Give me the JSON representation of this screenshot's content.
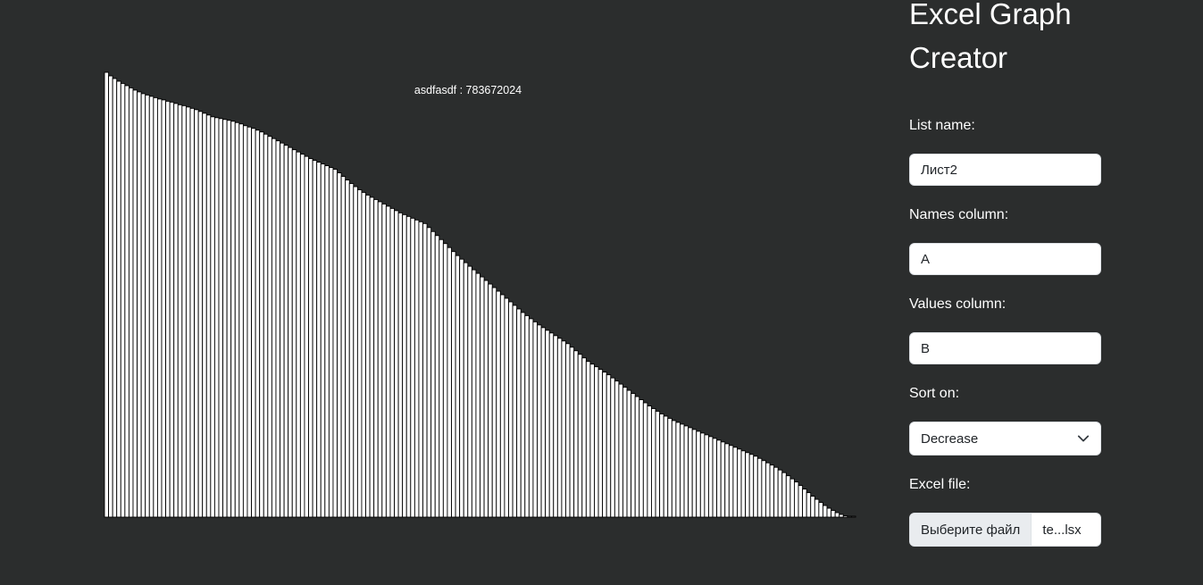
{
  "app": {
    "title": "Excel Graph Creator"
  },
  "form": {
    "list_name": {
      "label": "List name:",
      "value": "Лист2"
    },
    "names_column": {
      "label": "Names column:",
      "value": "A"
    },
    "values_column": {
      "label": "Values column:",
      "value": "B"
    },
    "sort_on": {
      "label": "Sort on:",
      "value": "Decrease",
      "icon": "chevron-down-icon"
    },
    "excel_file": {
      "label": "Excel file:",
      "button_label": "Выберите файл",
      "file_name": "te...lsx"
    }
  },
  "chart_data": {
    "type": "bar",
    "tooltip": "asdfasdf : 783672024",
    "sort": "decrease",
    "values": [
      100.0,
      99.2,
      98.6,
      98.0,
      97.5,
      97.0,
      96.5,
      96.0,
      95.6,
      95.2,
      94.9,
      94.6,
      94.3,
      94.0,
      93.8,
      93.5,
      93.3,
      93.0,
      92.7,
      92.5,
      92.2,
      91.9,
      91.6,
      91.2,
      90.8,
      90.4,
      90.0,
      89.8,
      89.6,
      89.4,
      89.2,
      89.0,
      88.7,
      88.4,
      88.0,
      87.7,
      87.4,
      87.0,
      86.6,
      86.1,
      85.6,
      85.1,
      84.6,
      84.1,
      83.6,
      83.1,
      82.6,
      82.1,
      81.6,
      81.1,
      80.6,
      80.2,
      79.8,
      79.4,
      79.0,
      78.6,
      78.2,
      77.4,
      76.6,
      75.8,
      75.0,
      74.3,
      73.6,
      73.0,
      72.4,
      71.9,
      71.4,
      70.9,
      70.4,
      69.9,
      69.4,
      68.9,
      68.4,
      68.0,
      67.6,
      67.2,
      66.8,
      66.4,
      66.0,
      65.1,
      64.2,
      63.3,
      62.4,
      61.5,
      60.6,
      59.7,
      58.8,
      58.0,
      57.2,
      56.4,
      55.6,
      54.8,
      54.0,
      53.2,
      52.4,
      51.6,
      50.8,
      50.0,
      49.2,
      48.4,
      47.6,
      46.8,
      46.0,
      45.3,
      44.6,
      43.9,
      43.2,
      42.6,
      42.0,
      41.4,
      40.8,
      40.2,
      39.6,
      39.0,
      38.2,
      37.4,
      36.6,
      35.8,
      35.0,
      34.4,
      33.8,
      33.2,
      32.6,
      32.0,
      31.3,
      30.6,
      29.9,
      29.2,
      28.5,
      27.8,
      27.1,
      26.4,
      25.7,
      25.0,
      24.4,
      23.8,
      23.2,
      22.7,
      22.2,
      21.7,
      21.3,
      20.9,
      20.5,
      20.1,
      19.7,
      19.3,
      18.9,
      18.5,
      18.1,
      17.7,
      17.3,
      16.9,
      16.5,
      16.1,
      15.7,
      15.3,
      14.9,
      14.5,
      14.1,
      13.7,
      13.2,
      12.7,
      12.2,
      11.7,
      11.2,
      10.6,
      10.0,
      9.3,
      8.6,
      7.9,
      7.1,
      6.3,
      5.5,
      4.7,
      4.0,
      3.3,
      2.6,
      2.0,
      1.5,
      1.0,
      0.6,
      0.3,
      0.1,
      0.0
    ]
  }
}
